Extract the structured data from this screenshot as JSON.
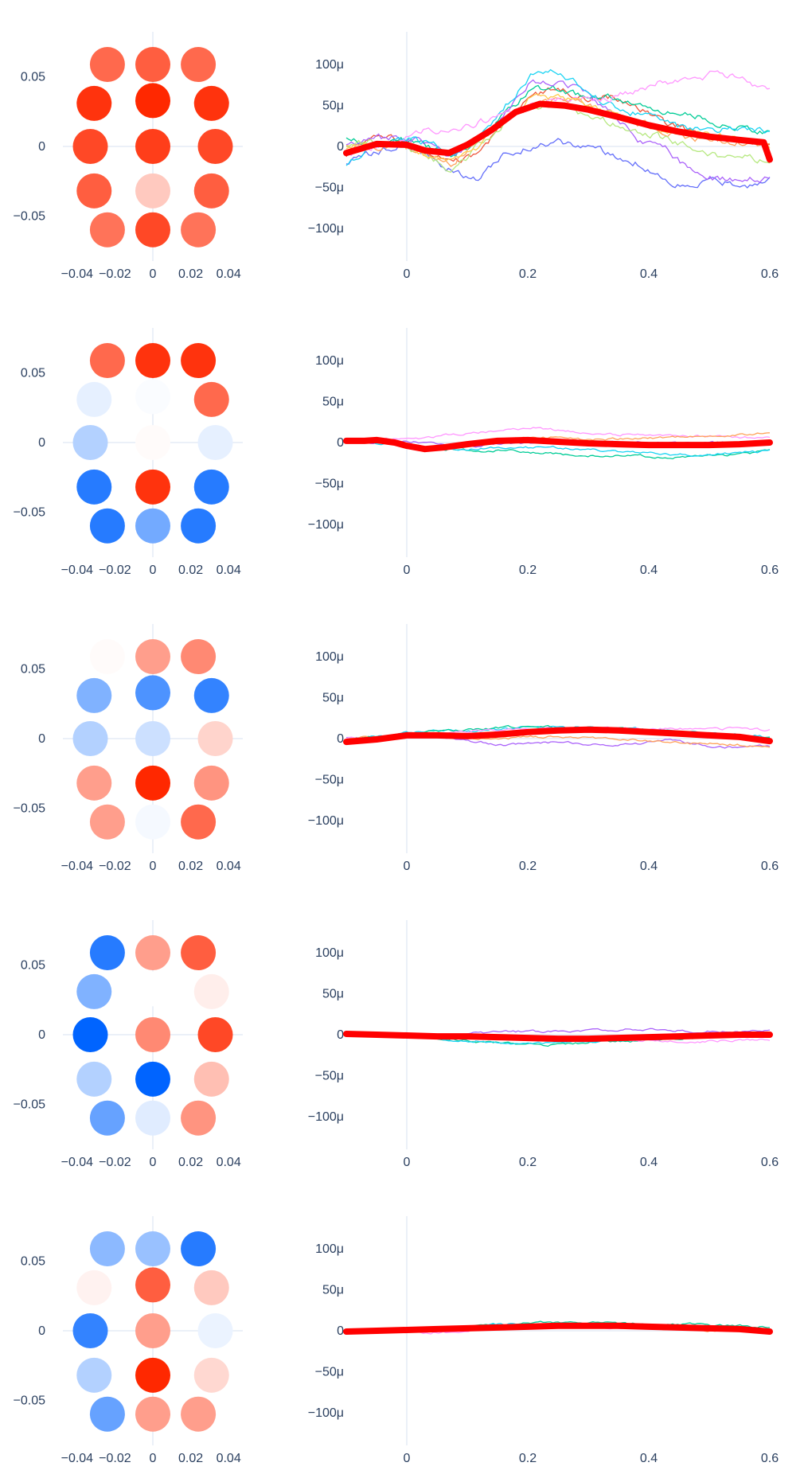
{
  "chart_data": {
    "type": "figure",
    "axis_color": "#2a3f5f",
    "zeroline_color": "#ebf0f8",
    "mean_line_color": "#ff0000",
    "trace_colors": [
      "#636efa",
      "#ef553b",
      "#00cc96",
      "#ab63fa",
      "#ffa15a",
      "#19d3f3",
      "#ff6692",
      "#b6e880",
      "#ff97ff",
      "#fecb52"
    ],
    "colorscale": [
      "#0064ff",
      "#ffffff",
      "#ff2800"
    ],
    "topomap": {
      "x_ticks": [
        -0.04,
        -0.02,
        0,
        0.02,
        0.04
      ],
      "x_tick_labels": [
        "−0.04",
        "−0.02",
        "0",
        "0.02",
        "0.04"
      ],
      "y_ticks": [
        0.05,
        0,
        -0.05
      ],
      "y_tick_labels": [
        "0.05",
        "0",
        "−0.05"
      ],
      "xlim": [
        -0.0475,
        0.0475
      ],
      "ylim": [
        -0.0825,
        0.0825
      ],
      "sensor_positions": [
        [
          -0.024,
          0.059
        ],
        [
          0,
          0.059
        ],
        [
          0.024,
          0.059
        ],
        [
          -0.031,
          0.031
        ],
        [
          0,
          0.033
        ],
        [
          0.031,
          0.031
        ],
        [
          -0.033,
          0
        ],
        [
          0,
          0
        ],
        [
          0.033,
          0
        ],
        [
          -0.031,
          -0.032
        ],
        [
          0,
          -0.032
        ],
        [
          0.031,
          -0.032
        ],
        [
          -0.024,
          -0.06
        ],
        [
          0,
          -0.06
        ],
        [
          0.024,
          -0.06
        ]
      ]
    },
    "timeseries": {
      "xlim": [
        -0.1,
        0.6
      ],
      "ylim": [
        -0.00014,
        0.00014
      ],
      "x_ticks": [
        0,
        0.2,
        0.4,
        0.6
      ],
      "x_tick_labels": [
        "0",
        "0.2",
        "0.4",
        "0.6"
      ],
      "y_ticks": [
        0.0001,
        5e-05,
        0,
        -5e-05,
        -0.0001
      ],
      "y_tick_labels": [
        "100μ",
        "50μ",
        "0",
        "−50μ",
        "−100μ"
      ]
    },
    "components": [
      {
        "sensor_weights": [
          0.7,
          0.75,
          0.7,
          0.95,
          1.0,
          0.95,
          0.85,
          0.9,
          0.85,
          0.75,
          0.25,
          0.75,
          0.65,
          0.85,
          0.65
        ],
        "mean_trace": {
          "x": [
            -0.1,
            -0.05,
            0,
            0.03,
            0.07,
            0.1,
            0.14,
            0.18,
            0.22,
            0.26,
            0.3,
            0.35,
            0.4,
            0.45,
            0.5,
            0.55,
            0.59,
            0.6
          ],
          "y": [
            -8e-06,
            3e-06,
            2e-06,
            -5e-06,
            -8e-06,
            2e-06,
            2e-05,
            4.2e-05,
            5.2e-05,
            5e-05,
            4.5e-05,
            3.6e-05,
            2.6e-05,
            1.8e-05,
            1.2e-05,
            8e-06,
            5e-06,
            -1.6e-05
          ]
        },
        "sensor_traces": [
          {
            "color_index": 0,
            "values": [
              -2e-05,
              -1e-05,
              0,
              -1e-05,
              -3e-05,
              -4e-05,
              -1e-05,
              0,
              5e-06,
              0,
              -1e-05,
              -2e-05,
              -4e-05,
              -5e-05,
              -4e-05,
              -5e-05,
              -4e-05
            ]
          },
          {
            "color_index": 1,
            "values": [
              -1e-05,
              1e-05,
              1e-05,
              -1e-05,
              -2e-05,
              -1e-05,
              3e-05,
              6e-05,
              7e-05,
              6e-05,
              6e-05,
              5e-05,
              3e-05,
              2e-05,
              1e-05,
              1e-05,
              0
            ]
          },
          {
            "color_index": 2,
            "values": [
              1e-05,
              0,
              1e-05,
              0,
              -1e-05,
              1e-05,
              4e-05,
              7e-05,
              7e-05,
              6e-05,
              6e-05,
              5e-05,
              4e-05,
              4e-05,
              3e-05,
              2e-05,
              2e-05
            ]
          },
          {
            "color_index": 3,
            "values": [
              0,
              1e-05,
              1e-05,
              5e-06,
              -1e-05,
              5e-06,
              4e-05,
              8e-05,
              8e-05,
              7e-05,
              4e-05,
              1e-05,
              0,
              -3e-05,
              -4e-05,
              -4e-05,
              -4e-05
            ]
          },
          {
            "color_index": 4,
            "values": [
              0,
              0,
              0,
              -1e-05,
              -2e-05,
              1e-05,
              3e-05,
              5e-05,
              6e-05,
              5e-05,
              4e-05,
              3e-05,
              2e-05,
              1e-05,
              1e-05,
              5e-06,
              0
            ]
          },
          {
            "color_index": 5,
            "values": [
              -2e-05,
              0,
              1e-05,
              5e-06,
              -1e-05,
              1e-05,
              5e-05,
              9e-05,
              9e-05,
              7e-05,
              5e-05,
              4e-05,
              3e-05,
              2e-05,
              2e-05,
              2e-05,
              2e-05
            ]
          },
          {
            "color_index": 7,
            "values": [
              0,
              5e-06,
              0,
              -1e-05,
              -3e-05,
              0,
              3e-05,
              5e-05,
              5e-05,
              4e-05,
              3e-05,
              2e-05,
              1e-05,
              0,
              -1e-05,
              -1e-05,
              -2e-05
            ]
          },
          {
            "color_index": 8,
            "values": [
              -1e-05,
              0,
              5e-06,
              2e-05,
              2e-05,
              3e-05,
              4e-05,
              5e-05,
              6e-05,
              6e-05,
              6e-05,
              7e-05,
              8e-05,
              8e-05,
              9e-05,
              8e-05,
              7e-05
            ]
          },
          {
            "color_index": 9,
            "values": [
              0,
              5e-06,
              0,
              -1e-05,
              -2e-05,
              0,
              3e-05,
              6e-05,
              6e-05,
              5e-05,
              4e-05,
              3e-05,
              2e-05,
              2e-05,
              1e-05,
              1e-05,
              0
            ]
          }
        ]
      },
      {
        "sensor_weights": [
          0.7,
          0.95,
          0.95,
          -0.1,
          -0.02,
          0.7,
          -0.3,
          0.02,
          -0.1,
          -0.85,
          0.95,
          -0.85,
          -0.85,
          -0.55,
          -0.85
        ],
        "mean_trace": {
          "x": [
            -0.1,
            -0.07,
            -0.05,
            -0.02,
            0,
            0.03,
            0.06,
            0.1,
            0.15,
            0.2,
            0.25,
            0.3,
            0.35,
            0.4,
            0.45,
            0.5,
            0.55,
            0.6
          ],
          "y": [
            2e-06,
            2e-06,
            3e-06,
            0,
            -4e-06,
            -8e-06,
            -6e-06,
            -2e-06,
            2e-06,
            3e-06,
            1e-06,
            -1e-06,
            -2e-06,
            -3e-06,
            -3e-06,
            -3e-06,
            -2e-06,
            0
          ]
        },
        "sensor_traces": [
          {
            "color_index": 8,
            "values": [
              0,
              5e-06,
              5e-06,
              5e-06,
              1e-05,
              1.2e-05,
              1.5e-05,
              1.8e-05,
              1.5e-05,
              1.2e-05,
              1e-05,
              1e-05,
              8e-06,
              8e-06,
              8e-06,
              6e-06,
              8e-06
            ]
          },
          {
            "color_index": 4,
            "values": [
              0,
              3e-06,
              0,
              -5e-06,
              -5e-06,
              0,
              4e-06,
              6e-06,
              6e-06,
              4e-06,
              4e-06,
              5e-06,
              6e-06,
              7e-06,
              8e-06,
              1e-05,
              1.2e-05
            ]
          },
          {
            "color_index": 2,
            "values": [
              2e-06,
              2e-06,
              0,
              -8e-06,
              -8e-06,
              -1e-05,
              -1e-05,
              -1.2e-05,
              -1.4e-05,
              -1.6e-05,
              -1.6e-05,
              -1.6e-05,
              -1.8e-05,
              -1.8e-05,
              -1.6e-05,
              -1.4e-05,
              -1e-05
            ]
          },
          {
            "color_index": 5,
            "values": [
              0,
              0,
              -2e-06,
              -6e-06,
              -8e-06,
              -8e-06,
              -6e-06,
              -6e-06,
              -6e-06,
              -8e-06,
              -1e-05,
              -1.2e-05,
              -1.4e-05,
              -1.6e-05,
              -1.4e-05,
              -1.2e-05,
              -1e-05
            ]
          },
          {
            "color_index": 3,
            "values": [
              0,
              0,
              2e-06,
              0,
              -4e-06,
              -4e-06,
              -2e-06,
              0,
              2e-06,
              2e-06,
              1e-06,
              0,
              0,
              0,
              0,
              0,
              2e-06
            ]
          }
        ]
      },
      {
        "sensor_weights": [
          0.02,
          0.45,
          0.55,
          -0.5,
          -0.7,
          -0.8,
          -0.3,
          -0.2,
          0.2,
          0.45,
          1.0,
          0.5,
          0.45,
          -0.04,
          0.7
        ],
        "mean_trace": {
          "x": [
            -0.1,
            -0.05,
            0,
            0.05,
            0.1,
            0.15,
            0.2,
            0.25,
            0.3,
            0.35,
            0.4,
            0.45,
            0.5,
            0.55,
            0.6
          ],
          "y": [
            -4e-06,
            -1e-06,
            4e-06,
            4e-06,
            3e-06,
            5e-06,
            8e-06,
            1e-05,
            1.1e-05,
            1e-05,
            8e-06,
            6e-06,
            4e-06,
            2e-06,
            -3e-06
          ]
        },
        "sensor_traces": [
          {
            "color_index": 5,
            "values": [
              0,
              2e-06,
              6e-06,
              1e-05,
              1e-05,
              1e-05,
              1.2e-05,
              1.4e-05,
              1.4e-05,
              1.4e-05,
              1.2e-05,
              1.2e-05,
              1e-05,
              8e-06,
              6e-06,
              4e-06,
              2e-06
            ]
          },
          {
            "color_index": 2,
            "values": [
              0,
              2e-06,
              4e-06,
              8e-06,
              1e-05,
              1.2e-05,
              1.4e-05,
              1.5e-05,
              1.4e-05,
              1.3e-05,
              1.2e-05,
              1e-05,
              8e-06,
              6e-06,
              4e-06,
              2e-06,
              0
            ]
          },
          {
            "color_index": 3,
            "values": [
              2e-06,
              0,
              2e-06,
              4e-06,
              0,
              -4e-06,
              -8e-06,
              -6e-06,
              -4e-06,
              -6e-06,
              -8e-06,
              -6e-06,
              0,
              -6e-06,
              -1e-05,
              -1e-05,
              -8e-06
            ]
          },
          {
            "color_index": 8,
            "values": [
              0,
              2e-06,
              4e-06,
              6e-06,
              8e-06,
              1e-05,
              1e-05,
              1.2e-05,
              1.2e-05,
              1.2e-05,
              1.2e-05,
              1.2e-05,
              1.2e-05,
              1.2e-05,
              1.2e-05,
              1.2e-05,
              1e-05
            ]
          },
          {
            "color_index": 4,
            "values": [
              0,
              2e-06,
              4e-06,
              4e-06,
              2e-06,
              0,
              0,
              2e-06,
              2e-06,
              2e-06,
              0,
              -2e-06,
              -4e-06,
              -6e-06,
              -6e-06,
              -8e-06,
              -1e-05
            ]
          }
        ]
      },
      {
        "sensor_weights": [
          -0.85,
          0.45,
          0.75,
          -0.5,
          0,
          0.08,
          -1.0,
          0.55,
          0.85,
          -0.3,
          -1.0,
          0.3,
          -0.6,
          -0.12,
          0.5
        ],
        "mean_trace": {
          "x": [
            -0.1,
            -0.05,
            0,
            0.05,
            0.1,
            0.15,
            0.2,
            0.25,
            0.3,
            0.35,
            0.4,
            0.45,
            0.5,
            0.55,
            0.6
          ],
          "y": [
            1e-06,
            0,
            -1e-06,
            -2e-06,
            -2e-06,
            -3e-06,
            -4e-06,
            -5e-06,
            -5e-06,
            -4e-06,
            -3e-06,
            -2e-06,
            -1e-06,
            0,
            0
          ]
        },
        "sensor_traces": [
          {
            "color_index": 3,
            "values": [
              0,
              0,
              0,
              -2e-06,
              -2e-06,
              2e-06,
              4e-06,
              4e-06,
              4e-06,
              4e-06,
              6e-06,
              6e-06,
              6e-06,
              4e-06,
              4e-06,
              4e-06,
              4e-06
            ]
          },
          {
            "color_index": 2,
            "values": [
              0,
              0,
              -2e-06,
              -4e-06,
              -6e-06,
              -8e-06,
              -1e-05,
              -1.2e-05,
              -1.2e-05,
              -1e-05,
              -8e-06,
              -8e-06,
              -6e-06,
              -4e-06,
              -2e-06,
              0,
              0
            ]
          },
          {
            "color_index": 5,
            "values": [
              0,
              0,
              -2e-06,
              -4e-06,
              -6e-06,
              -8e-06,
              -1e-05,
              -1e-05,
              -1e-05,
              -8e-06,
              -8e-06,
              -6e-06,
              -4e-06,
              -2e-06,
              0,
              0,
              0
            ]
          },
          {
            "color_index": 8,
            "values": [
              0,
              0,
              0,
              -2e-06,
              -2e-06,
              -2e-06,
              -4e-06,
              -4e-06,
              -6e-06,
              -6e-06,
              -6e-06,
              -6e-06,
              -8e-06,
              -8e-06,
              -8e-06,
              -6e-06,
              -6e-06
            ]
          }
        ]
      },
      {
        "sensor_weights": [
          -0.45,
          -0.4,
          -0.85,
          0.06,
          0.75,
          0.25,
          -0.8,
          0.45,
          -0.08,
          -0.3,
          1.0,
          0.18,
          -0.6,
          0.45,
          0.45
        ],
        "mean_trace": {
          "x": [
            -0.1,
            -0.05,
            0,
            0.05,
            0.1,
            0.15,
            0.2,
            0.25,
            0.3,
            0.35,
            0.4,
            0.45,
            0.5,
            0.55,
            0.6
          ],
          "y": [
            -1e-06,
            0,
            1e-06,
            2e-06,
            3e-06,
            4e-06,
            5e-06,
            6e-06,
            6e-06,
            6e-06,
            5e-06,
            4e-06,
            3e-06,
            2e-06,
            -1e-06
          ]
        },
        "sensor_traces": [
          {
            "color_index": 2,
            "values": [
              0,
              0,
              0,
              2e-06,
              4e-06,
              6e-06,
              8e-06,
              1e-05,
              1e-05,
              1e-05,
              9e-06,
              8e-06,
              8e-06,
              8e-06,
              6e-06,
              6e-06,
              4e-06
            ]
          },
          {
            "color_index": 8,
            "values": [
              0,
              0,
              0,
              -2e-06,
              -2e-06,
              2e-06,
              4e-06,
              4e-06,
              6e-06,
              4e-06,
              4e-06,
              4e-06,
              4e-06,
              2e-06,
              2e-06,
              2e-06,
              0
            ]
          },
          {
            "color_index": 4,
            "values": [
              0,
              0,
              0,
              2e-06,
              2e-06,
              4e-06,
              4e-06,
              6e-06,
              6e-06,
              6e-06,
              6e-06,
              4e-06,
              2e-06,
              2e-06,
              0,
              0,
              0
            ]
          },
          {
            "color_index": 5,
            "values": [
              0,
              0,
              2e-06,
              2e-06,
              4e-06,
              6e-06,
              8e-06,
              8e-06,
              8e-06,
              8e-06,
              6e-06,
              6e-06,
              6e-06,
              4e-06,
              4e-06,
              2e-06,
              2e-06
            ]
          }
        ]
      }
    ]
  }
}
